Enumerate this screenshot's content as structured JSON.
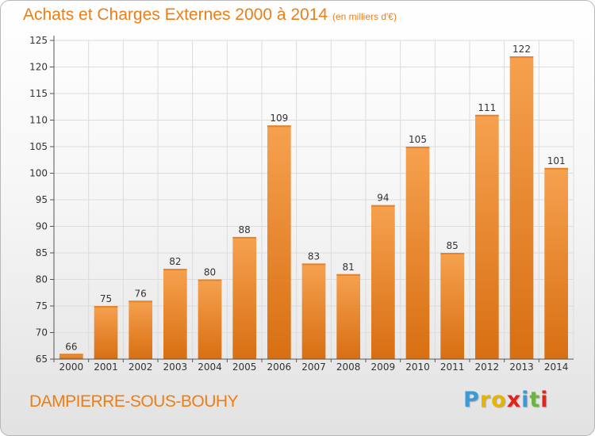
{
  "header": {
    "title": "Achats et Charges Externes 2000 à 2014",
    "subtitle": "(en milliers d'€)"
  },
  "footer": {
    "place": "DAMPIERRE-SOUS-BOUHY",
    "logo_letters": [
      "P",
      "r",
      "o",
      "x",
      "i",
      "t",
      "i"
    ],
    "logo_colors": [
      "#3a9ad9",
      "#e8b400",
      "#e8b400",
      "#e2231a",
      "#3a9ad9",
      "#6cb33f",
      "#e2231a"
    ]
  },
  "colors": {
    "bar_light": "#f6a14f",
    "bar_dark": "#d86f12",
    "accent": "#ee7d14",
    "grid": "#dcdcdc"
  },
  "chart_data": {
    "type": "bar",
    "categories": [
      "2000",
      "2001",
      "2002",
      "2003",
      "2004",
      "2005",
      "2006",
      "2007",
      "2008",
      "2009",
      "2010",
      "2011",
      "2012",
      "2013",
      "2014"
    ],
    "values": [
      66,
      75,
      76,
      82,
      80,
      88,
      109,
      83,
      81,
      94,
      105,
      85,
      111,
      122,
      101
    ],
    "title": "Achats et Charges Externes 2000 à 2014",
    "subtitle": "(en milliers d'€)",
    "xlabel": "",
    "ylabel": "",
    "ylim": [
      65,
      125
    ],
    "yticks": [
      65,
      70,
      75,
      80,
      85,
      90,
      95,
      100,
      105,
      110,
      115,
      120,
      125
    ],
    "grid": true,
    "legend": "none"
  }
}
